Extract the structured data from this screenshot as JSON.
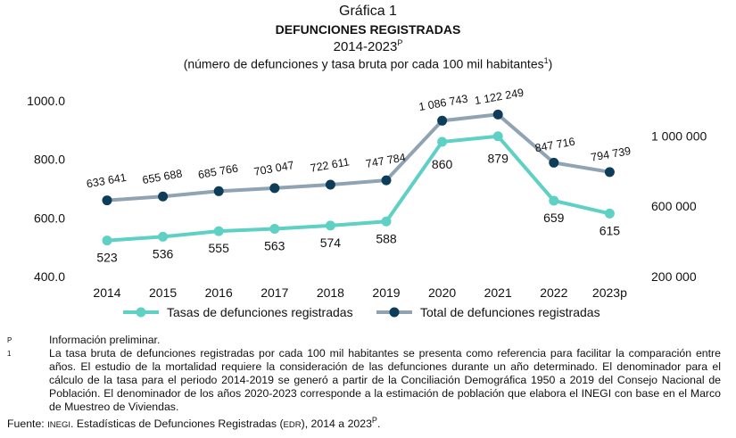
{
  "title": "Gráfica 1",
  "subtitle": "DEFUNCIONES REGISTRADAS",
  "period": "2014-2023",
  "period_sup": "P",
  "units": "(número de defunciones y tasa bruta por cada 100 mil habitantes",
  "units_sup": "1",
  "units_close": ")",
  "chart_data": {
    "type": "line",
    "categories": [
      "2014",
      "2015",
      "2016",
      "2017",
      "2018",
      "2019",
      "2020",
      "2021",
      "2022",
      "2023p"
    ],
    "series": [
      {
        "name": "Tasas de defunciones registradas",
        "axis": "left",
        "color": "#5ed0c4",
        "values": [
          523,
          536,
          555,
          563,
          574,
          588,
          860,
          879,
          659,
          615
        ],
        "labels": [
          "523",
          "536",
          "555",
          "563",
          "574",
          "588",
          "860",
          "879",
          "659",
          "615"
        ]
      },
      {
        "name": "Total de defunciones registradas",
        "axis": "right",
        "color": "#8fa3b3",
        "marker_color": "#0e3d5a",
        "values": [
          633641,
          655688,
          685766,
          703047,
          722611,
          747784,
          1086743,
          1122249,
          847716,
          794739
        ],
        "labels": [
          "633 641",
          "655 688",
          "685 766",
          "703 047",
          "722 611",
          "747 784",
          "1 086 743",
          "1 122 249",
          "847 716",
          "794 739"
        ]
      }
    ],
    "y_left": {
      "range": [
        400,
        1000
      ],
      "ticks": [
        "400.0",
        "600.0",
        "800.0",
        "1000.0"
      ],
      "tick_values": [
        400,
        600,
        800,
        1000
      ]
    },
    "y_right": {
      "range": [
        200000,
        1200000
      ],
      "ticks": [
        "200 000",
        "600 000",
        "1 000 000"
      ],
      "tick_values": [
        200000,
        600000,
        1000000
      ]
    },
    "grid": false,
    "legend": "bottom"
  },
  "notes": {
    "p_mark": "P",
    "p_text": "Información preliminar.",
    "n1_mark": "1",
    "n1_text": "La tasa bruta de defunciones registradas por cada 100 mil habitantes se presenta como referencia para facilitar la comparación entre años. El estudio de la mortalidad requiere la consideración de las defunciones durante un año determinado. El denominador para el cálculo de la tasa para el periodo 2014-2019 se generó a partir de la Conciliación Demográfica 1950 a 2019 del Consejo Nacional de Población. El denominador de los años 2020-2023 corresponde a la estimación de población que elabora el INEGI con base en el Marco de Muestreo de Viviendas.",
    "source_label": "Fuente:",
    "source_inegi": "INEGI",
    "source_text": ". Estadísticas de Defunciones Registradas (",
    "source_edr": "EDR",
    "source_end": "), 2014 a 2023",
    "source_sup": "P",
    "source_dot": "."
  }
}
